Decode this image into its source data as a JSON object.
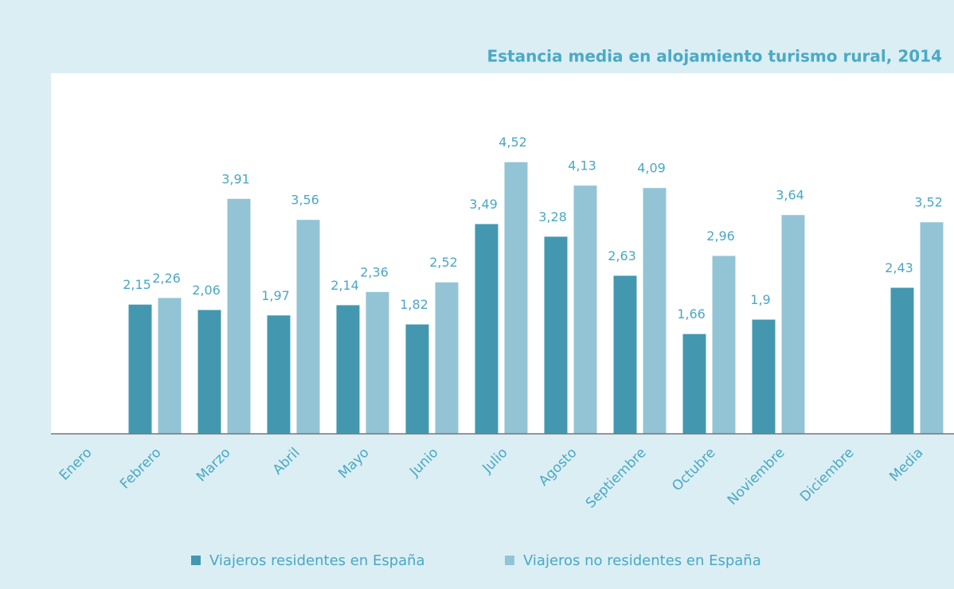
{
  "chart_data": {
    "type": "bar",
    "title": "Estancia media en alojamiento turismo rural, 2014",
    "categories": [
      "Enero",
      "Febrero",
      "Marzo",
      "Abril",
      "Mayo",
      "Junio",
      "Julio",
      "Agosto",
      "Septiembre",
      "Octubre",
      "Noviembre",
      "Diciembre",
      "Media"
    ],
    "series": [
      {
        "name": "Viajeros residentes en España",
        "color": "#4398b0",
        "values": [
          null,
          2.15,
          2.06,
          1.97,
          2.14,
          1.82,
          3.49,
          3.28,
          2.63,
          1.66,
          1.9,
          null,
          2.43
        ],
        "value_labels": [
          null,
          "2,15",
          "2,06",
          "1,97",
          "2,14",
          "1,82",
          "3,49",
          "3,28",
          "2,63",
          "1,66",
          "1,9",
          null,
          "2,43"
        ]
      },
      {
        "name": "Viajeros no residentes en España",
        "color": "#93c4d5",
        "values": [
          null,
          2.26,
          3.91,
          3.56,
          2.36,
          2.52,
          4.52,
          4.13,
          4.09,
          2.96,
          3.64,
          null,
          3.52
        ],
        "value_labels": [
          null,
          "2,26",
          "3,91",
          "3,56",
          "2,36",
          "2,52",
          "4,52",
          "4,13",
          "4,09",
          "2,96",
          "3,64",
          null,
          "3,52"
        ]
      }
    ],
    "ylim": [
      0,
      6
    ],
    "legend": "bottom"
  }
}
